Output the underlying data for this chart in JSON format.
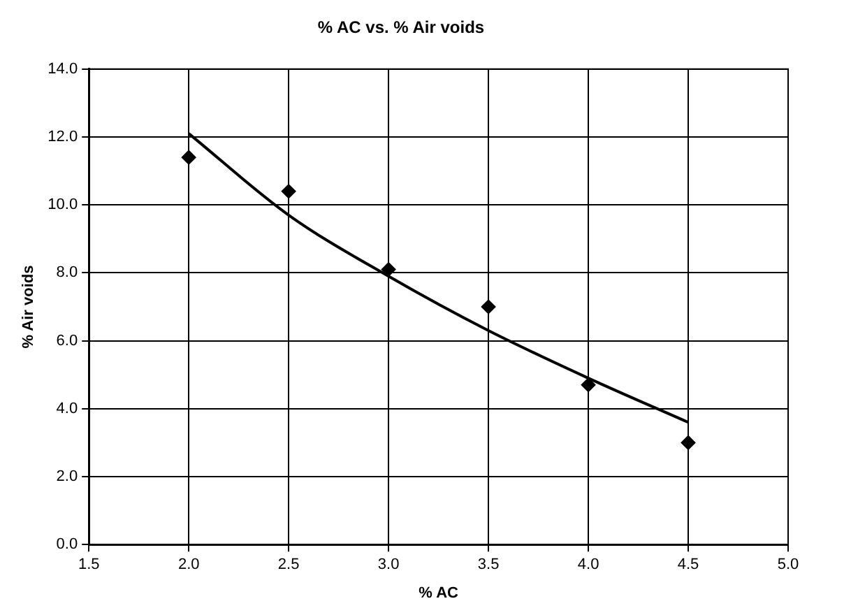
{
  "chart_data": {
    "type": "scatter",
    "title": "% AC vs. % Air voids",
    "xlabel": "% AC",
    "ylabel": "% Air voids",
    "xlim": [
      1.5,
      5.0
    ],
    "xticks": [
      {
        "value": 1.5,
        "label": "1.5"
      },
      {
        "value": 2,
        "label": "2.0"
      },
      {
        "value": 2.5,
        "label": "2.5"
      },
      {
        "value": 3,
        "label": "3.0"
      },
      {
        "value": 3.5,
        "label": "3.5"
      },
      {
        "value": 4,
        "label": "4.0"
      },
      {
        "value": 4.5,
        "label": "4.5"
      },
      {
        "value": 5,
        "label": "5.0"
      }
    ],
    "ylim": [
      0,
      14
    ],
    "yticks": [
      {
        "value": 0,
        "label": "0.0"
      },
      {
        "value": 2,
        "label": "2.0"
      },
      {
        "value": 4,
        "label": "4.0"
      },
      {
        "value": 6,
        "label": "6.0"
      },
      {
        "value": 8,
        "label": "8.0"
      },
      {
        "value": 10,
        "label": "10.0"
      },
      {
        "value": 12,
        "label": "12.0"
      },
      {
        "value": 14,
        "label": "14.0"
      }
    ],
    "grid": true,
    "legend": false,
    "series": [
      {
        "color": "#000000",
        "marker": "diamond",
        "x": [
          2.0,
          2.5,
          3.0,
          3.5,
          4.0,
          4.5
        ],
        "values": [
          11.4,
          10.4,
          8.1,
          7.0,
          4.7,
          3.0
        ]
      },
      {
        "type": "line",
        "color": "#000000",
        "marker": "none",
        "x": [
          2.0,
          2.5,
          3.0,
          3.5,
          4.0,
          4.5
        ],
        "values": [
          12.1,
          9.7,
          7.9,
          6.3,
          4.9,
          3.6
        ]
      }
    ]
  }
}
